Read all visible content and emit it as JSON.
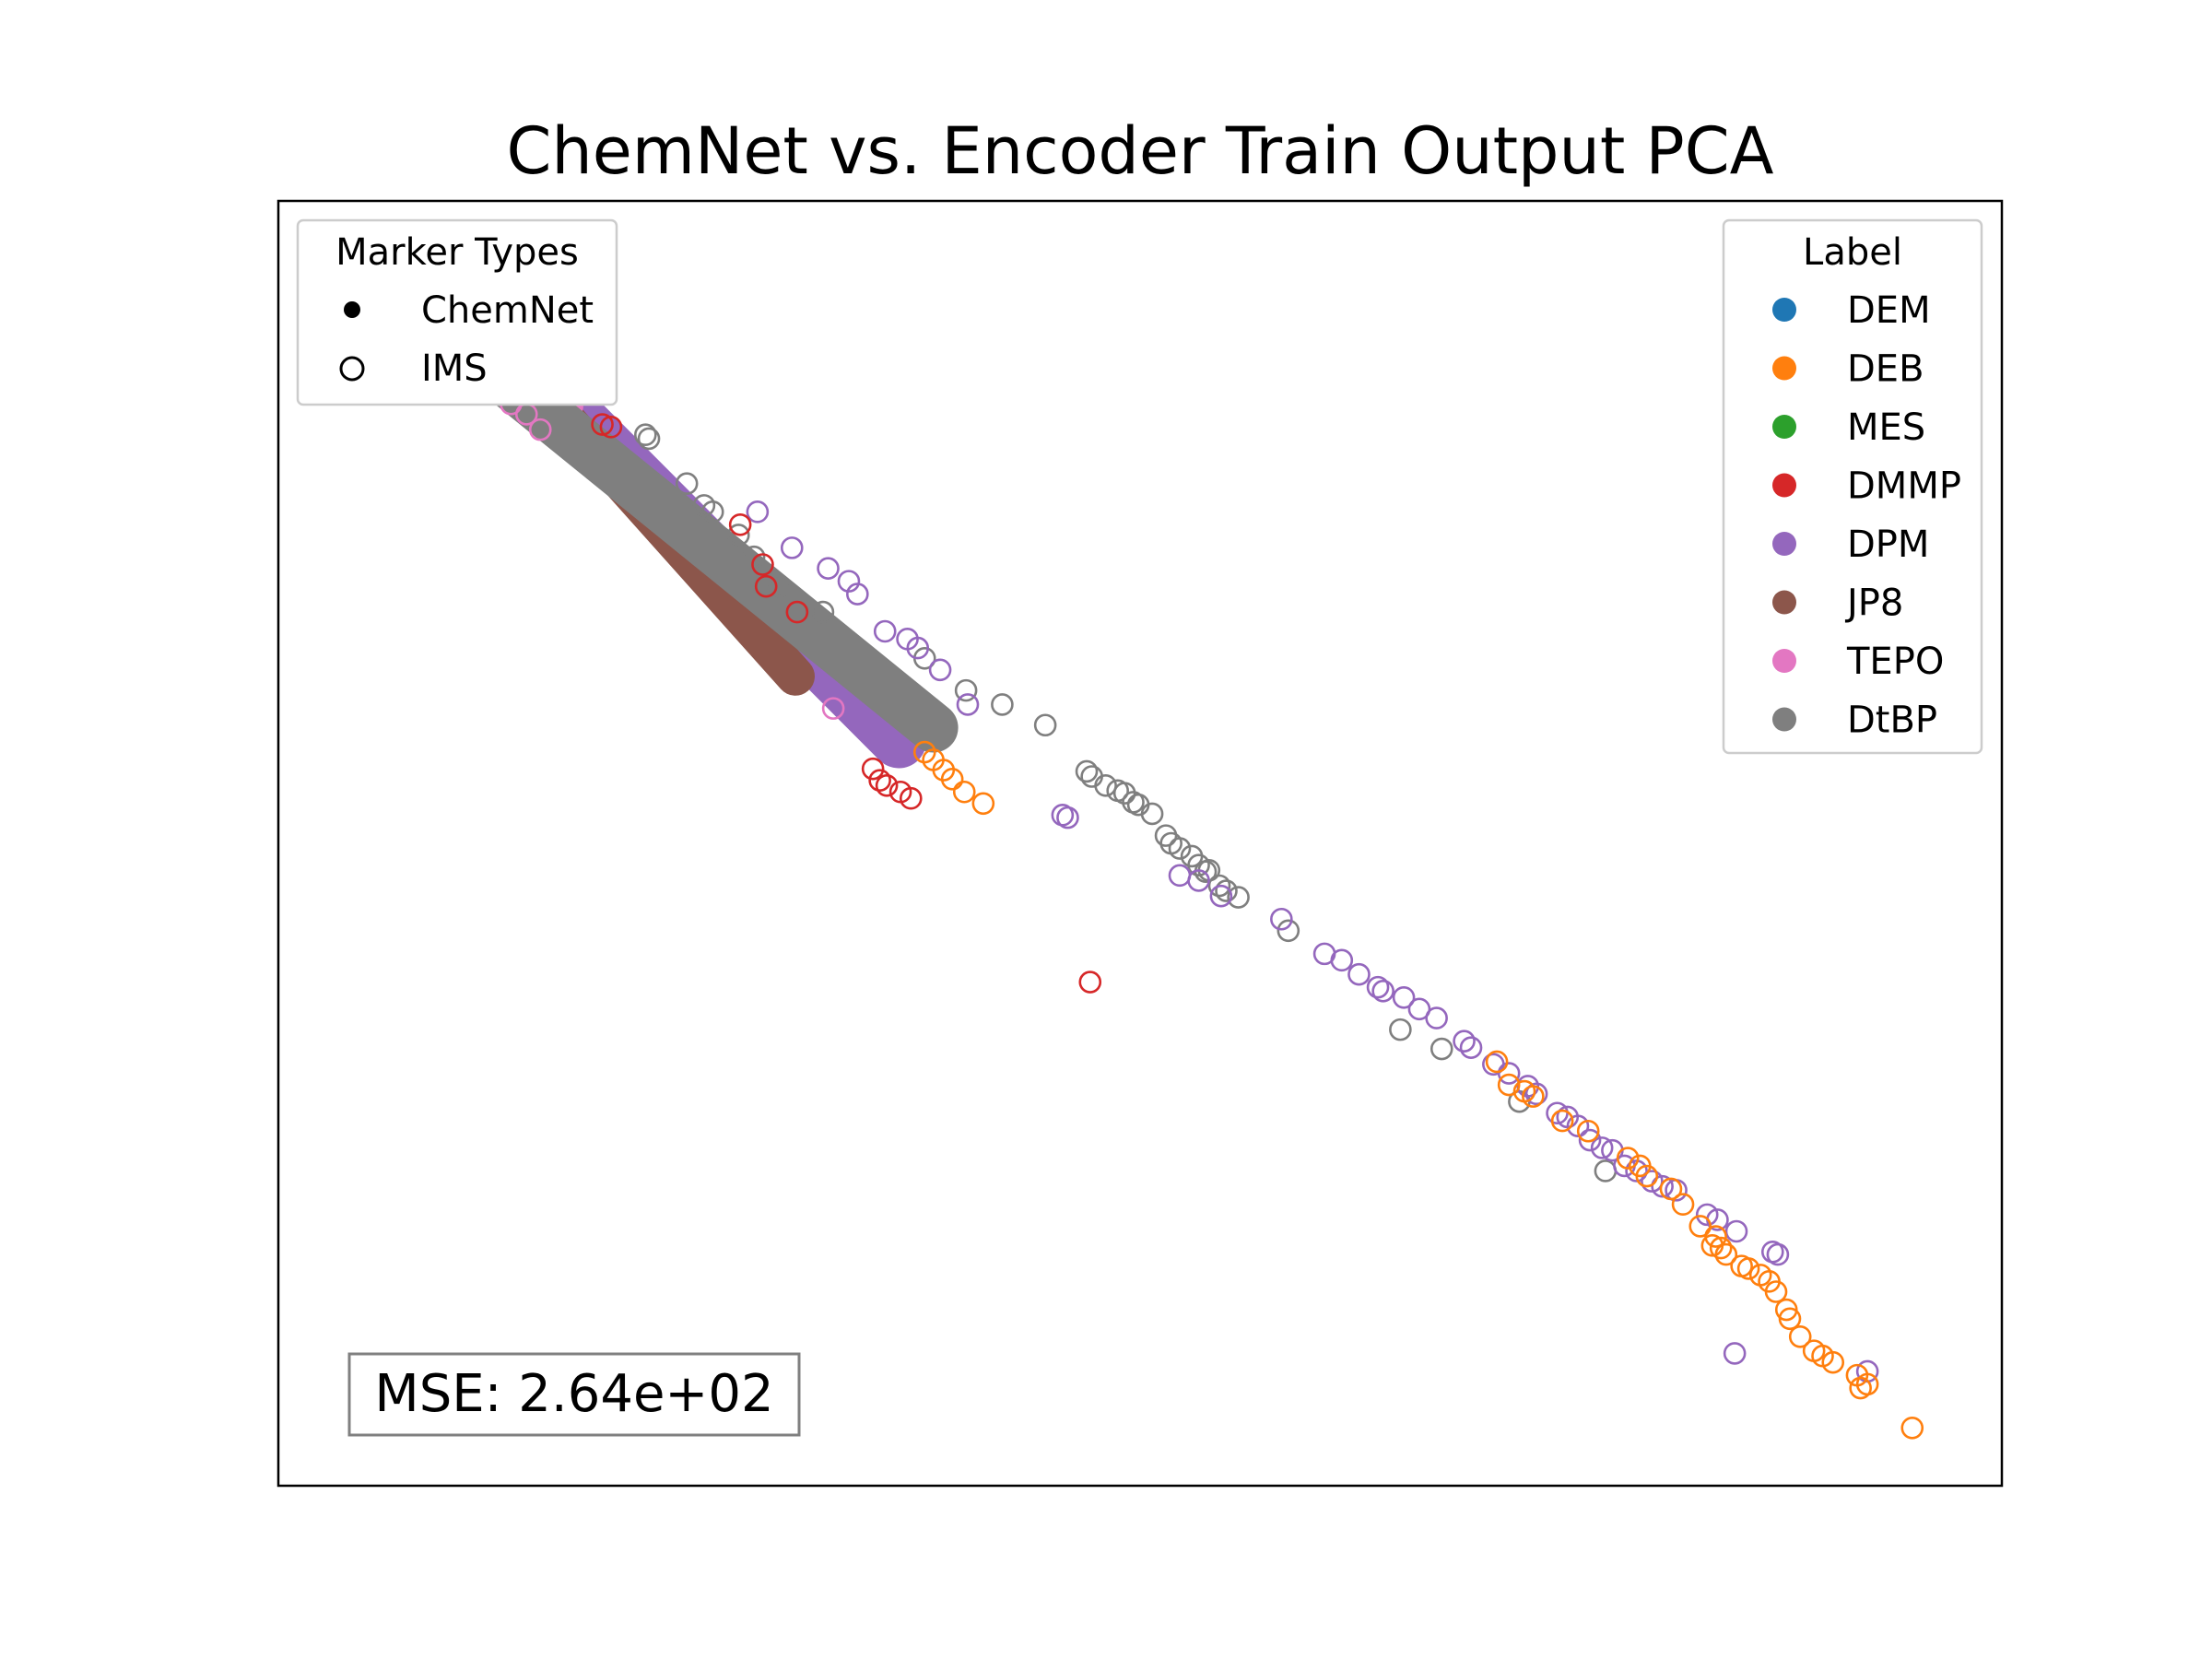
{
  "chart_data": {
    "type": "scatter",
    "title": "ChemNet vs. Encoder Train Output PCA",
    "xlabel": "",
    "ylabel": "",
    "axes_ticks": false,
    "xlim": [
      0,
      1
    ],
    "ylim": [
      0,
      1
    ],
    "grid": false,
    "marker_legend": {
      "title": "Marker Types",
      "placement": "top-left",
      "entries": [
        {
          "label": "ChemNet",
          "marker": "filled-circle"
        },
        {
          "label": "IMS",
          "marker": "open-circle"
        }
      ]
    },
    "label_legend": {
      "title": "Label",
      "placement": "top-right",
      "entries": [
        {
          "label": "DEM",
          "color": "#1f77b4"
        },
        {
          "label": "DEB",
          "color": "#ff7f0e"
        },
        {
          "label": "MES",
          "color": "#2ca02c"
        },
        {
          "label": "DMMP",
          "color": "#d62728"
        },
        {
          "label": "DPM",
          "color": "#9467bd"
        },
        {
          "label": "JP8",
          "color": "#8c564b"
        },
        {
          "label": "TEPO",
          "color": "#e377c2"
        },
        {
          "label": "DtBP",
          "color": "#7f7f7f"
        }
      ]
    },
    "annotation": "MSE: 2.64e+02",
    "chemnet_bands": [
      {
        "label": "DPM",
        "color": "#9467bd",
        "from": [
          0.1,
          0.93
        ],
        "to": [
          0.36,
          0.58
        ]
      },
      {
        "label": "JP8",
        "color": "#8c564b",
        "from": [
          0.12,
          0.9
        ],
        "to": [
          0.3,
          0.63
        ]
      },
      {
        "label": "TEPO",
        "color": "#e377c2",
        "from": [
          0.08,
          0.92
        ],
        "to": [
          0.17,
          0.84
        ]
      },
      {
        "label": "DtBP",
        "color": "#7f7f7f",
        "from": [
          0.04,
          0.96
        ],
        "to": [
          0.38,
          0.59
        ]
      }
    ],
    "series": [
      {
        "name": "DtBP",
        "marker": "open",
        "color": "#7f7f7f",
        "points": [
          [
            0.213,
            0.818
          ],
          [
            0.215,
            0.815
          ],
          [
            0.237,
            0.78
          ],
          [
            0.247,
            0.763
          ],
          [
            0.252,
            0.758
          ],
          [
            0.267,
            0.74
          ],
          [
            0.276,
            0.723
          ],
          [
            0.291,
            0.7
          ],
          [
            0.316,
            0.68
          ],
          [
            0.375,
            0.644
          ],
          [
            0.399,
            0.619
          ],
          [
            0.42,
            0.608
          ],
          [
            0.445,
            0.592
          ],
          [
            0.469,
            0.556
          ],
          [
            0.472,
            0.552
          ],
          [
            0.48,
            0.545
          ],
          [
            0.487,
            0.541
          ],
          [
            0.491,
            0.539
          ],
          [
            0.496,
            0.532
          ],
          [
            0.499,
            0.53
          ],
          [
            0.507,
            0.523
          ],
          [
            0.515,
            0.506
          ],
          [
            0.518,
            0.5
          ],
          [
            0.523,
            0.496
          ],
          [
            0.53,
            0.49
          ],
          [
            0.534,
            0.483
          ],
          [
            0.538,
            0.478
          ],
          [
            0.54,
            0.479
          ],
          [
            0.546,
            0.467
          ],
          [
            0.55,
            0.463
          ],
          [
            0.557,
            0.458
          ],
          [
            0.586,
            0.432
          ],
          [
            0.651,
            0.355
          ],
          [
            0.675,
            0.34
          ],
          [
            0.72,
            0.299
          ],
          [
            0.77,
            0.245
          ]
        ]
      },
      {
        "name": "DPM",
        "marker": "open",
        "color": "#9467bd",
        "points": [
          [
            0.278,
            0.758
          ],
          [
            0.298,
            0.73
          ],
          [
            0.319,
            0.714
          ],
          [
            0.331,
            0.704
          ],
          [
            0.336,
            0.694
          ],
          [
            0.352,
            0.665
          ],
          [
            0.365,
            0.659
          ],
          [
            0.371,
            0.652
          ],
          [
            0.384,
            0.635
          ],
          [
            0.4,
            0.608
          ],
          [
            0.455,
            0.522
          ],
          [
            0.458,
            0.52
          ],
          [
            0.523,
            0.475
          ],
          [
            0.534,
            0.471
          ],
          [
            0.547,
            0.459
          ],
          [
            0.582,
            0.441
          ],
          [
            0.607,
            0.414
          ],
          [
            0.617,
            0.409
          ],
          [
            0.627,
            0.398
          ],
          [
            0.638,
            0.388
          ],
          [
            0.641,
            0.385
          ],
          [
            0.653,
            0.38
          ],
          [
            0.662,
            0.371
          ],
          [
            0.672,
            0.364
          ],
          [
            0.688,
            0.346
          ],
          [
            0.692,
            0.341
          ],
          [
            0.705,
            0.328
          ],
          [
            0.714,
            0.321
          ],
          [
            0.725,
            0.311
          ],
          [
            0.73,
            0.305
          ],
          [
            0.742,
            0.29
          ],
          [
            0.748,
            0.287
          ],
          [
            0.754,
            0.28
          ],
          [
            0.761,
            0.269
          ],
          [
            0.768,
            0.263
          ],
          [
            0.774,
            0.261
          ],
          [
            0.781,
            0.249
          ],
          [
            0.788,
            0.245
          ],
          [
            0.797,
            0.237
          ],
          [
            0.803,
            0.233
          ],
          [
            0.811,
            0.23
          ],
          [
            0.829,
            0.211
          ],
          [
            0.835,
            0.207
          ],
          [
            0.846,
            0.198
          ],
          [
            0.867,
            0.182
          ],
          [
            0.87,
            0.18
          ],
          [
            0.845,
            0.103
          ],
          [
            0.922,
            0.089
          ]
        ]
      },
      {
        "name": "DEB",
        "marker": "open",
        "color": "#ff7f0e",
        "points": [
          [
            0.375,
            0.571
          ],
          [
            0.38,
            0.565
          ],
          [
            0.386,
            0.557
          ],
          [
            0.391,
            0.55
          ],
          [
            0.398,
            0.54
          ],
          [
            0.409,
            0.531
          ],
          [
            0.707,
            0.33
          ],
          [
            0.714,
            0.312
          ],
          [
            0.723,
            0.307
          ],
          [
            0.728,
            0.303
          ],
          [
            0.745,
            0.284
          ],
          [
            0.76,
            0.276
          ],
          [
            0.783,
            0.255
          ],
          [
            0.79,
            0.249
          ],
          [
            0.794,
            0.241
          ],
          [
            0.808,
            0.231
          ],
          [
            0.815,
            0.219
          ],
          [
            0.825,
            0.202
          ],
          [
            0.834,
            0.194
          ],
          [
            0.832,
            0.187
          ],
          [
            0.837,
            0.185
          ],
          [
            0.84,
            0.18
          ],
          [
            0.849,
            0.171
          ],
          [
            0.853,
            0.169
          ],
          [
            0.86,
            0.164
          ],
          [
            0.865,
            0.159
          ],
          [
            0.869,
            0.151
          ],
          [
            0.875,
            0.137
          ],
          [
            0.877,
            0.13
          ],
          [
            0.883,
            0.116
          ],
          [
            0.891,
            0.105
          ],
          [
            0.896,
            0.101
          ],
          [
            0.902,
            0.096
          ],
          [
            0.916,
            0.086
          ],
          [
            0.918,
            0.076
          ],
          [
            0.922,
            0.079
          ],
          [
            0.948,
            0.045
          ]
        ]
      },
      {
        "name": "DMMP",
        "marker": "open",
        "color": "#d62728",
        "points": [
          [
            0.188,
            0.826
          ],
          [
            0.193,
            0.824
          ],
          [
            0.268,
            0.748
          ],
          [
            0.281,
            0.717
          ],
          [
            0.283,
            0.7
          ],
          [
            0.301,
            0.68
          ],
          [
            0.345,
            0.558
          ],
          [
            0.349,
            0.549
          ],
          [
            0.353,
            0.545
          ],
          [
            0.361,
            0.54
          ],
          [
            0.367,
            0.535
          ],
          [
            0.471,
            0.392
          ]
        ]
      },
      {
        "name": "TEPO",
        "marker": "open",
        "color": "#e377c2",
        "points": [
          [
            0.127,
            0.851
          ],
          [
            0.135,
            0.842
          ],
          [
            0.144,
            0.834
          ],
          [
            0.152,
            0.822
          ],
          [
            0.322,
            0.605
          ]
        ]
      }
    ]
  }
}
